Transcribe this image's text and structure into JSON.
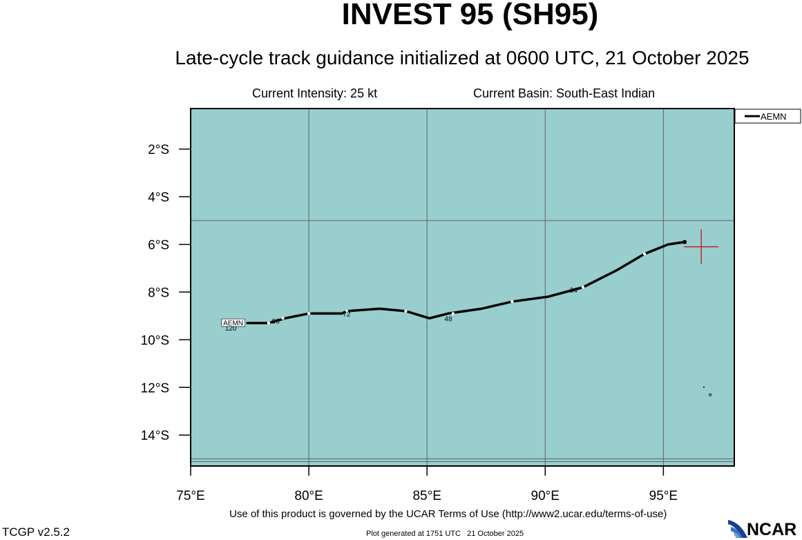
{
  "header": {
    "title": "INVEST 95 (SH95)",
    "subtitle": "Late-cycle track guidance initialized at 0600 UTC, 21 October 2025",
    "intensity": "Current Intensity: 25 kt",
    "basin": "Current Basin: South-East Indian"
  },
  "footer": {
    "terms": "Use of this product is governed by the UCAR Terms of Use (http://www2.ucar.edu/terms-of-use)",
    "version": "TCGP v2.5.2",
    "generated": "Plot generated at 1751 UTC   21 October 2025",
    "logo_text": "NCAR"
  },
  "colors": {
    "ocean": "#98cece",
    "track": "#000000",
    "current_position": "#d00000",
    "grid": "#606060"
  },
  "chart_data": {
    "type": "line",
    "xlim": [
      75,
      98
    ],
    "ylim": [
      -15.3,
      -0.3
    ],
    "x_ticks": [
      75,
      80,
      85,
      90,
      95
    ],
    "x_tick_labels": [
      "75°E",
      "80°E",
      "85°E",
      "90°E",
      "95°E"
    ],
    "y_ticks": [
      -2,
      -4,
      -6,
      -8,
      -10,
      -12,
      -14
    ],
    "y_tick_labels": [
      "2°S",
      "4°S",
      "6°S",
      "8°S",
      "10°S",
      "12°S",
      "14°S"
    ],
    "grid": true,
    "legend": {
      "position": "top-right",
      "entries": [
        "AEMN"
      ]
    },
    "current_position": {
      "lon": 96.6,
      "lat": -6.1
    },
    "series": [
      {
        "name": "AEMN",
        "lon": [
          95.9,
          95.2,
          94.2,
          93.0,
          91.6,
          90.1,
          88.6,
          87.3,
          85.9,
          85.1,
          84.1,
          83.0,
          81.6,
          81.4,
          80.0,
          79.0,
          78.3,
          77.4
        ],
        "lat": [
          -5.9,
          -6.0,
          -6.4,
          -7.1,
          -7.8,
          -8.2,
          -8.4,
          -8.7,
          -8.9,
          -9.1,
          -8.8,
          -8.7,
          -8.8,
          -8.9,
          -8.9,
          -9.1,
          -9.3,
          -9.3
        ],
        "markers": [
          {
            "lon": 94.2,
            "lat": -6.4
          },
          {
            "lon": 91.6,
            "lat": -7.8
          },
          {
            "lon": 88.6,
            "lat": -8.4
          },
          {
            "lon": 86.1,
            "lat": -8.9
          },
          {
            "lon": 84.1,
            "lat": -8.8
          },
          {
            "lon": 81.6,
            "lat": -8.8
          },
          {
            "lon": 80.0,
            "lat": -8.9
          },
          {
            "lon": 78.9,
            "lat": -9.1
          },
          {
            "lon": 78.3,
            "lat": -9.3
          }
        ],
        "hour_labels": [
          {
            "text": "24",
            "lon": 91.2,
            "lat": -7.9
          },
          {
            "text": "48",
            "lon": 85.9,
            "lat": -9.1
          },
          {
            "text": "72",
            "lon": 81.6,
            "lat": -8.9
          },
          {
            "text": "96",
            "lon": 78.6,
            "lat": -9.2
          },
          {
            "text": "120",
            "lon": 76.7,
            "lat": -9.5
          }
        ],
        "end_label": {
          "text": "AEMN",
          "lon": 76.8,
          "lat": -9.3
        }
      }
    ]
  }
}
